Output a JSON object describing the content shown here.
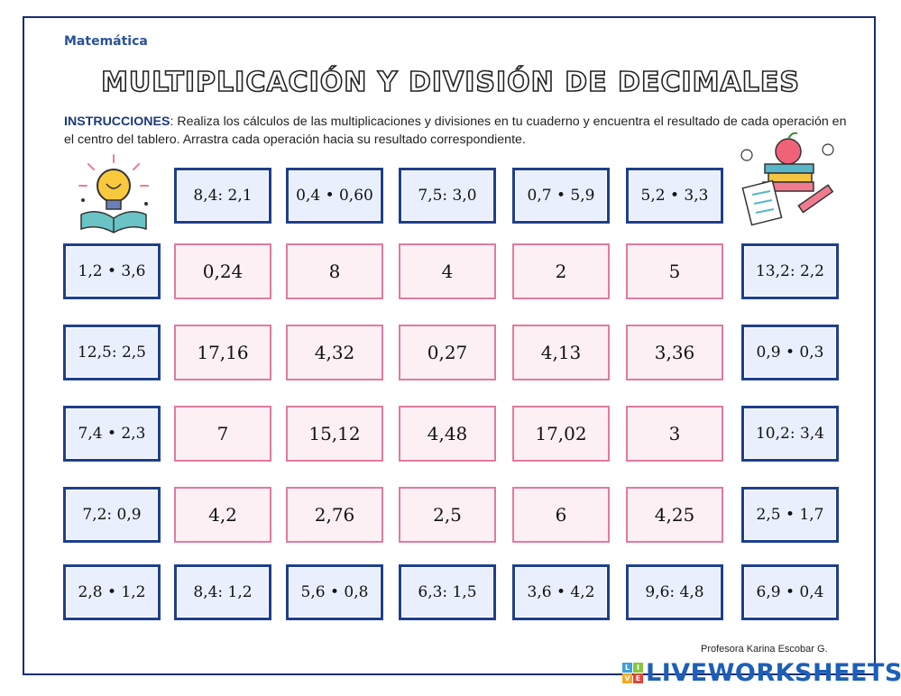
{
  "header": {
    "subject": "Matemática",
    "title": "MULTIPLICACIÓN Y DIVISIÓN DE DECIMALES"
  },
  "instructions": {
    "label": "INSTRUCCIONES",
    "text": ": Realiza los cálculos de las multiplicaciones y divisiones en tu cuaderno y encuentra el resultado de cada operación en el centro del tablero.  Arrastra cada operación hacia su resultado correspondiente."
  },
  "operations": {
    "top": [
      "8,4: 2,1",
      "0,4 • 0,60",
      "7,5: 3,0",
      "0,7 • 5,9",
      "5,2 • 3,3"
    ],
    "left": [
      "1,2 • 3,6",
      "12,5: 2,5",
      "7,4 • 2,3",
      "7,2: 0,9"
    ],
    "right": [
      "13,2: 2,2",
      "0,9 • 0,3",
      "10,2: 3,4",
      "2,5 • 1,7"
    ],
    "bottom": [
      "2,8 • 1,2",
      "8,4: 1,2",
      "5,6 • 0,8",
      "6,3: 1,5",
      "3,6 • 4,2",
      "9,6: 4,8",
      "6,9 • 0,4"
    ]
  },
  "results": [
    [
      "0,24",
      "8",
      "4",
      "2",
      "5"
    ],
    [
      "17,16",
      "4,32",
      "0,27",
      "4,13",
      "3,36"
    ],
    [
      "7",
      "15,12",
      "4,48",
      "17,02",
      "3"
    ],
    [
      "4,2",
      "2,76",
      "2,5",
      "6",
      "4,25"
    ]
  ],
  "footer": {
    "credit": "Profesora Karina Escobar G.",
    "brand": "LIVEWORKSHEETS",
    "logo_letters": [
      "L",
      "I",
      "V",
      "E"
    ]
  },
  "decor": {
    "left_image": "lightbulb-book-icon",
    "right_image": "books-apple-pencil-icon"
  }
}
